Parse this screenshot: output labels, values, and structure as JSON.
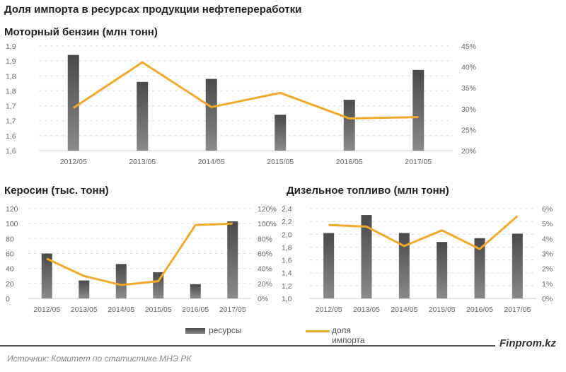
{
  "title": "Доля импорта в ресурсах продукции нефтепереработки",
  "legend": {
    "bars": "ресурсы",
    "line": "доля импорта"
  },
  "source": "Источник:  Комитет по статистике МНЭ РК",
  "brand": "Finprom.kz",
  "colors": {
    "bar_top": "#4a4a4a",
    "bar_bottom": "#8a8a8a",
    "line": "#f0a92b"
  },
  "chart_data": [
    {
      "type": "bar+line",
      "title": "Моторный бензин (млн тонн)",
      "categories": [
        "2012/05",
        "2013/05",
        "2014/05",
        "2015/05",
        "2016/05",
        "2017/05"
      ],
      "series": [
        {
          "name": "ресурсы",
          "axis": "left",
          "values": [
            1.92,
            1.83,
            1.84,
            1.72,
            1.77,
            1.87
          ]
        },
        {
          "name": "доля импорта",
          "axis": "right",
          "values": [
            30.2,
            41.1,
            30.4,
            33.8,
            27.7,
            28.0
          ]
        }
      ],
      "ylim": [
        1.6,
        1.95
      ],
      "yticks": [
        "1,6",
        "1,6",
        "1,7",
        "1,7",
        "1,8",
        "1,8",
        "1,9",
        "1,9"
      ],
      "y2lim": [
        20,
        45
      ],
      "y2ticks": [
        "20%",
        "25%",
        "30%",
        "35%",
        "40%",
        "45%"
      ]
    },
    {
      "type": "bar+line",
      "title": "Керосин (тыс. тонн)",
      "categories": [
        "2012/05",
        "2013/05",
        "2014/05",
        "2015/05",
        "2016/05",
        "2017/05"
      ],
      "series": [
        {
          "name": "ресурсы",
          "axis": "left",
          "values": [
            60,
            24,
            46,
            35,
            19,
            103
          ]
        },
        {
          "name": "доля импорта",
          "axis": "right",
          "values": [
            53,
            30,
            18,
            23,
            98,
            100
          ]
        }
      ],
      "ylim": [
        0,
        120
      ],
      "yticks": [
        "0",
        "20",
        "40",
        "60",
        "80",
        "100",
        "120"
      ],
      "y2lim": [
        0,
        120
      ],
      "y2ticks": [
        "0%",
        "20%",
        "40%",
        "60%",
        "80%",
        "100%",
        "120%"
      ]
    },
    {
      "type": "bar+line",
      "title": "Дизельное топливо (млн тонн)",
      "categories": [
        "2012/05",
        "2013/05",
        "2014/05",
        "2015/05",
        "2016/05",
        "2017/05"
      ],
      "series": [
        {
          "name": "ресурсы",
          "axis": "left",
          "values": [
            2.02,
            2.3,
            2.02,
            1.88,
            1.94,
            2.01
          ]
        },
        {
          "name": "доля импорта",
          "axis": "right",
          "values": [
            4.9,
            4.8,
            3.5,
            4.55,
            3.3,
            5.5
          ]
        }
      ],
      "ylim": [
        1.0,
        2.4
      ],
      "yticks": [
        "1,0",
        "1,2",
        "1,4",
        "1,6",
        "1,8",
        "2,0",
        "2,2",
        "2,4"
      ],
      "y2lim": [
        0,
        6
      ],
      "y2ticks": [
        "0%",
        "1%",
        "2%",
        "3%",
        "4%",
        "5%",
        "6%"
      ]
    }
  ]
}
